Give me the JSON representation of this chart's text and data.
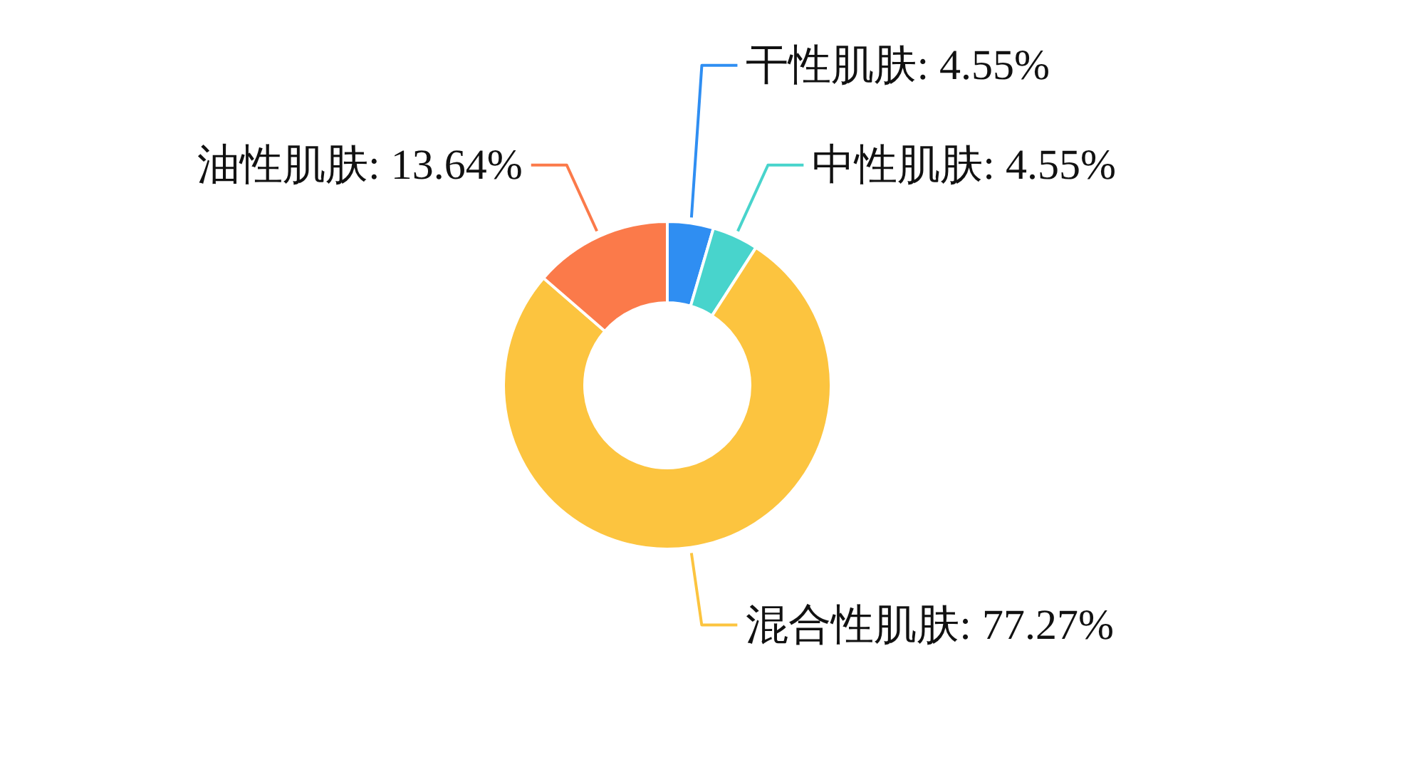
{
  "chart_data": {
    "type": "donut",
    "categories": [
      "干性肌肤",
      "中性肌肤",
      "混合性肌肤",
      "油性肌肤"
    ],
    "values": [
      4.55,
      4.55,
      77.27,
      13.64
    ],
    "value_labels": [
      "4.55%",
      "4.55%",
      "77.27%",
      "13.64%"
    ],
    "colors": [
      "#2f8ef2",
      "#48d4cc",
      "#fcc43f",
      "#fb7a4a"
    ],
    "legend": false
  }
}
